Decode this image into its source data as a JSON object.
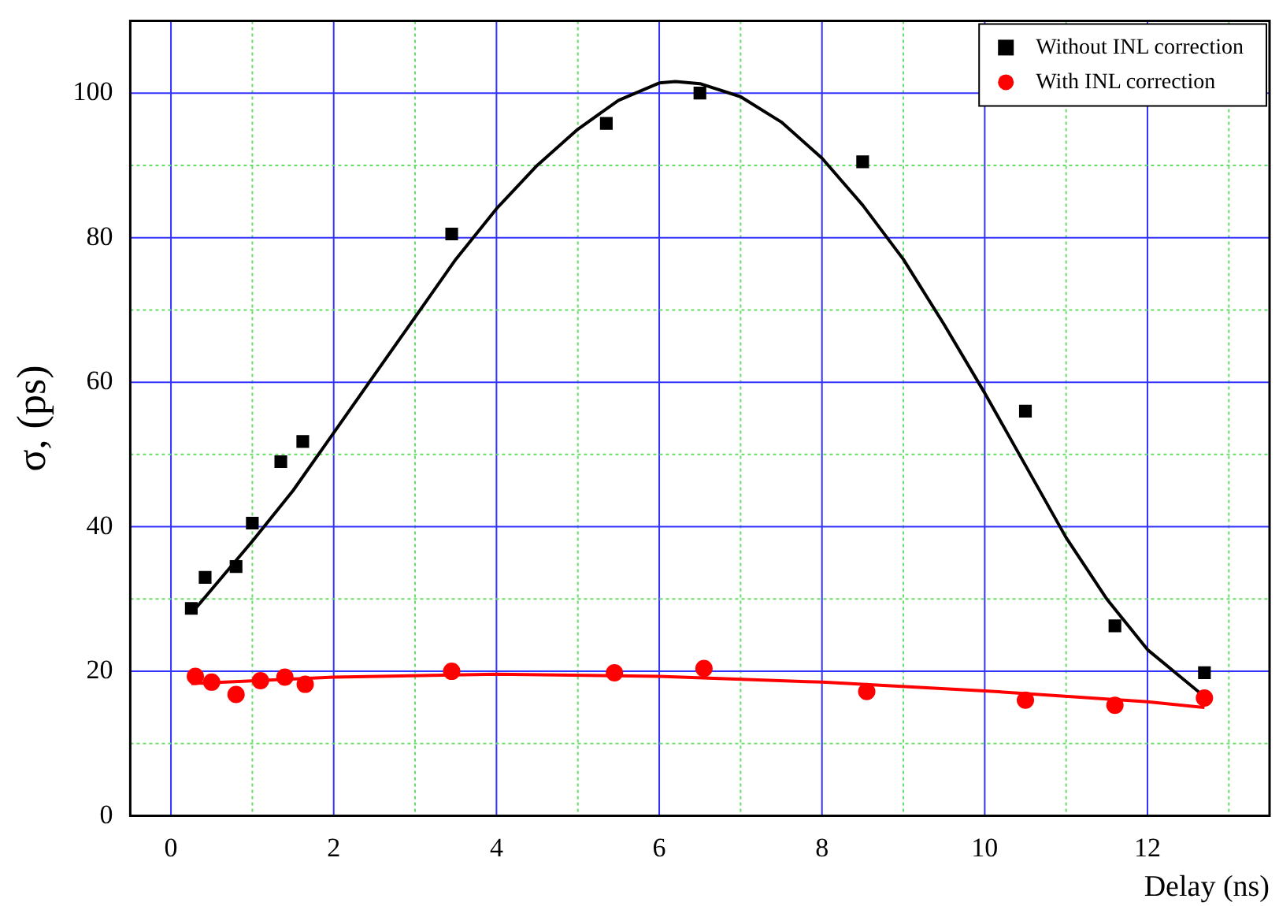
{
  "chart_data": {
    "type": "scatter",
    "xlabel": "Delay (ns)",
    "ylabel": "σ, (ps)",
    "xlim": [
      -0.5,
      13.5
    ],
    "ylim": [
      0,
      110
    ],
    "xticks": [
      0,
      {
        "value": 1,
        "label": null
      },
      2,
      {
        "value": 3,
        "label": null
      },
      4,
      {
        "value": 5,
        "label": null
      },
      6,
      {
        "value": 7,
        "label": null
      },
      8,
      {
        "value": 9,
        "label": null
      },
      10,
      {
        "value": 11,
        "label": null
      },
      12,
      {
        "value": 13,
        "label": null
      }
    ],
    "yticks": [
      0,
      {
        "value": 10,
        "label": null
      },
      20,
      {
        "value": 30,
        "label": null
      },
      40,
      {
        "value": 50,
        "label": null
      },
      60,
      {
        "value": 70,
        "label": null
      },
      80,
      {
        "value": 90,
        "label": null
      },
      100
    ],
    "grid": true,
    "legend": "top right",
    "series": [
      {
        "name": "Without INL correction",
        "marker": "square",
        "color": "#000000",
        "x": [
          0.25,
          0.42,
          0.8,
          1.0,
          1.35,
          1.62,
          3.45,
          5.35,
          6.5,
          8.5,
          10.5,
          11.6,
          12.7
        ],
        "values": [
          28.7,
          33,
          34.5,
          40.5,
          49,
          51.8,
          80.5,
          95.8,
          100,
          90.5,
          56,
          26.3,
          19.8
        ]
      },
      {
        "name": "With INL correction",
        "marker": "circle",
        "color": "#ff0000",
        "x": [
          0.3,
          0.5,
          0.8,
          1.1,
          1.4,
          1.65,
          3.45,
          5.45,
          6.55,
          8.55,
          10.5,
          11.6,
          12.7
        ],
        "values": [
          19.3,
          18.5,
          16.8,
          18.7,
          19.2,
          18.2,
          20,
          19.8,
          20.4,
          17.2,
          16,
          15.3,
          16.3
        ]
      },
      {
        "type": "line",
        "marker": "none",
        "color": "#000000",
        "x": [
          0.25,
          1,
          1.5,
          2,
          2.5,
          3,
          3.5,
          4,
          4.5,
          5,
          5.5,
          6,
          6.2,
          6.5,
          7,
          7.5,
          8,
          8.5,
          9,
          9.5,
          10,
          10.5,
          11,
          11.5,
          12,
          12.7
        ],
        "values": [
          28,
          38,
          45,
          53,
          61,
          69,
          77,
          84,
          90,
          95,
          99,
          101.4,
          101.6,
          101.3,
          99.5,
          96,
          91,
          84.5,
          77,
          68,
          58.5,
          48.5,
          38.5,
          30,
          23,
          16.5
        ]
      },
      {
        "type": "line",
        "marker": "none",
        "color": "#ff0000",
        "x": [
          0.25,
          2,
          4,
          6,
          8,
          10,
          12,
          12.7
        ],
        "values": [
          18.3,
          19.2,
          19.6,
          19.3,
          18.5,
          17.3,
          15.8,
          15
        ]
      }
    ]
  }
}
